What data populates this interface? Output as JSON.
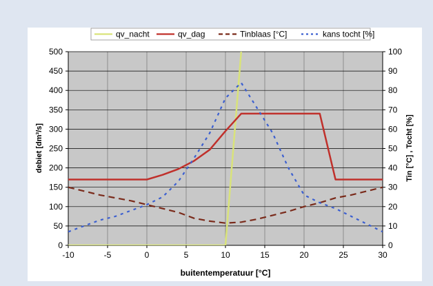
{
  "chart_data": {
    "type": "line",
    "xlabel": "buitentemperatuur [°C]",
    "ylabel_left": "debiet [dm³/s]",
    "ylabel_right": "Tin [°C] , Tocht [%]",
    "xlim": [
      -10,
      30
    ],
    "ylim_left": [
      0,
      500
    ],
    "ylim_right": [
      0,
      100
    ],
    "x_ticks": [
      "-10",
      "-5",
      "0",
      "5",
      "10",
      "15",
      "20",
      "25",
      "30"
    ],
    "y_left_ticks": [
      "0",
      "50",
      "100",
      "150",
      "200",
      "250",
      "300",
      "350",
      "400",
      "450",
      "500"
    ],
    "y_right_ticks": [
      "0",
      "10",
      "20",
      "30",
      "40",
      "50",
      "60",
      "70",
      "80",
      "90",
      "100"
    ],
    "grid": true,
    "legend_position": "top",
    "series": [
      {
        "name": "qv_nacht",
        "axis": "left",
        "color": "#d9e37a",
        "style": "solid",
        "points": [
          [
            -10,
            0
          ],
          [
            10,
            0
          ],
          [
            12,
            500
          ]
        ]
      },
      {
        "name": "qv_dag",
        "axis": "left",
        "color": "#c0302b",
        "style": "solid",
        "points": [
          [
            -10,
            170
          ],
          [
            0,
            170
          ],
          [
            2,
            182
          ],
          [
            4,
            197
          ],
          [
            6,
            218
          ],
          [
            8,
            247
          ],
          [
            10,
            295
          ],
          [
            12,
            340
          ],
          [
            22,
            340
          ],
          [
            24,
            170
          ],
          [
            30,
            170
          ]
        ]
      },
      {
        "name": "Tinblaas [°C]",
        "axis": "right",
        "color": "#7a2a1a",
        "style": "dash",
        "points": [
          [
            -10,
            30
          ],
          [
            -8,
            28
          ],
          [
            -6,
            26
          ],
          [
            -4,
            24.5
          ],
          [
            -2,
            23
          ],
          [
            0,
            21
          ],
          [
            2,
            19
          ],
          [
            4,
            17
          ],
          [
            6,
            14
          ],
          [
            8,
            12.5
          ],
          [
            10,
            11.5
          ],
          [
            12,
            12
          ],
          [
            14,
            13.5
          ],
          [
            16,
            15.5
          ],
          [
            18,
            17.5
          ],
          [
            20,
            20
          ],
          [
            22,
            22
          ],
          [
            24,
            24.5
          ],
          [
            26,
            26
          ],
          [
            28,
            28
          ],
          [
            30,
            30
          ]
        ]
      },
      {
        "name": "kans tocht [%]",
        "axis": "right",
        "color": "#3b5fd0",
        "style": "dot",
        "points": [
          [
            -10,
            7
          ],
          [
            -8,
            10
          ],
          [
            -6,
            13
          ],
          [
            -4,
            15
          ],
          [
            -2,
            18
          ],
          [
            0,
            21
          ],
          [
            2,
            25
          ],
          [
            4,
            33
          ],
          [
            6,
            45
          ],
          [
            8,
            58
          ],
          [
            10,
            76
          ],
          [
            12,
            84
          ],
          [
            14,
            71
          ],
          [
            16,
            58
          ],
          [
            18,
            40
          ],
          [
            20,
            26
          ],
          [
            22,
            22
          ],
          [
            24,
            19
          ],
          [
            26,
            15
          ],
          [
            28,
            11
          ],
          [
            30,
            7
          ]
        ]
      }
    ]
  }
}
